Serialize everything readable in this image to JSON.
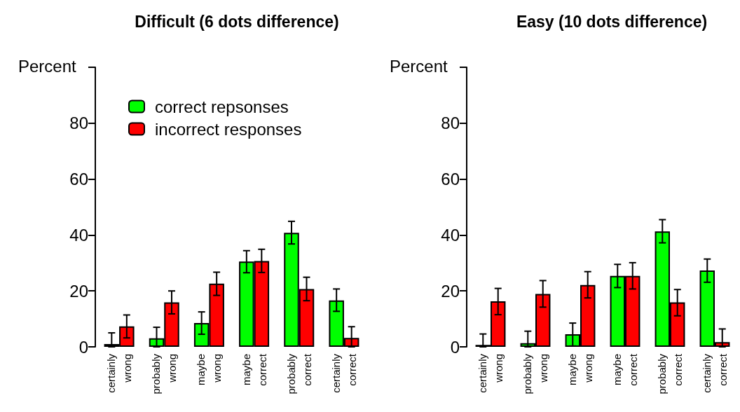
{
  "chart_data": [
    {
      "type": "bar",
      "title": "Difficult (6 dots difference)",
      "ylabel": "Percent",
      "categories": [
        "certainly\nwrong",
        "probably\nwrong",
        "maybe\nwrong",
        "maybe\ncorrect",
        "probably\ncorrect",
        "certainly\ncorrect"
      ],
      "series": [
        {
          "name": "correct repsonses",
          "color": "#00ff00",
          "values": [
            1.0,
            3.1,
            8.5,
            30.5,
            40.8,
            16.6
          ],
          "errors": [
            [
              0,
              5.0
            ],
            [
              0,
              7.0
            ],
            [
              4.5,
              12.5
            ],
            [
              26.5,
              34.4
            ],
            [
              36.8,
              44.9
            ],
            [
              12.7,
              20.7
            ]
          ]
        },
        {
          "name": "incorrect responses",
          "color": "#ff0000",
          "values": [
            7.3,
            15.9,
            22.6,
            30.7,
            20.7,
            3.2
          ],
          "errors": [
            [
              3.2,
              11.4
            ],
            [
              11.8,
              20.0
            ],
            [
              18.4,
              26.7
            ],
            [
              26.6,
              34.9
            ],
            [
              16.5,
              24.9
            ],
            [
              0,
              7.2
            ]
          ]
        }
      ],
      "ylim": [
        0,
        100
      ],
      "yticks": [
        0,
        20,
        40,
        60,
        80,
        {
          "value": 100,
          "label": null
        }
      ],
      "legend": "top left"
    },
    {
      "type": "bar",
      "title": "Easy (10 dots difference)",
      "ylabel": "Percent",
      "categories": [
        "certainly\nwrong",
        "probably\nwrong",
        "maybe\nwrong",
        "maybe\ncorrect",
        "probably\ncorrect",
        "certainly\ncorrect"
      ],
      "series": [
        {
          "color": "#00ff00",
          "values": [
            0.7,
            1.3,
            4.5,
            25.4,
            41.3,
            27.3
          ],
          "errors": [
            [
              0,
              4.6
            ],
            [
              0,
              5.6
            ],
            [
              0.3,
              8.5
            ],
            [
              21.2,
              29.5
            ],
            [
              37.2,
              45.5
            ],
            [
              23.1,
              31.4
            ]
          ]
        },
        {
          "color": "#ff0000",
          "values": [
            16.3,
            18.9,
            22.1,
            25.4,
            15.9,
            1.7
          ],
          "errors": [
            [
              11.5,
              20.9
            ],
            [
              14.2,
              23.7
            ],
            [
              17.5,
              26.9
            ],
            [
              20.7,
              30.1
            ],
            [
              11.1,
              20.5
            ],
            [
              0,
              6.4
            ]
          ]
        }
      ],
      "ylim": [
        0,
        100
      ],
      "yticks": [
        0,
        20,
        40,
        60,
        80,
        {
          "value": 100,
          "label": null
        }
      ],
      "legend": false
    }
  ]
}
